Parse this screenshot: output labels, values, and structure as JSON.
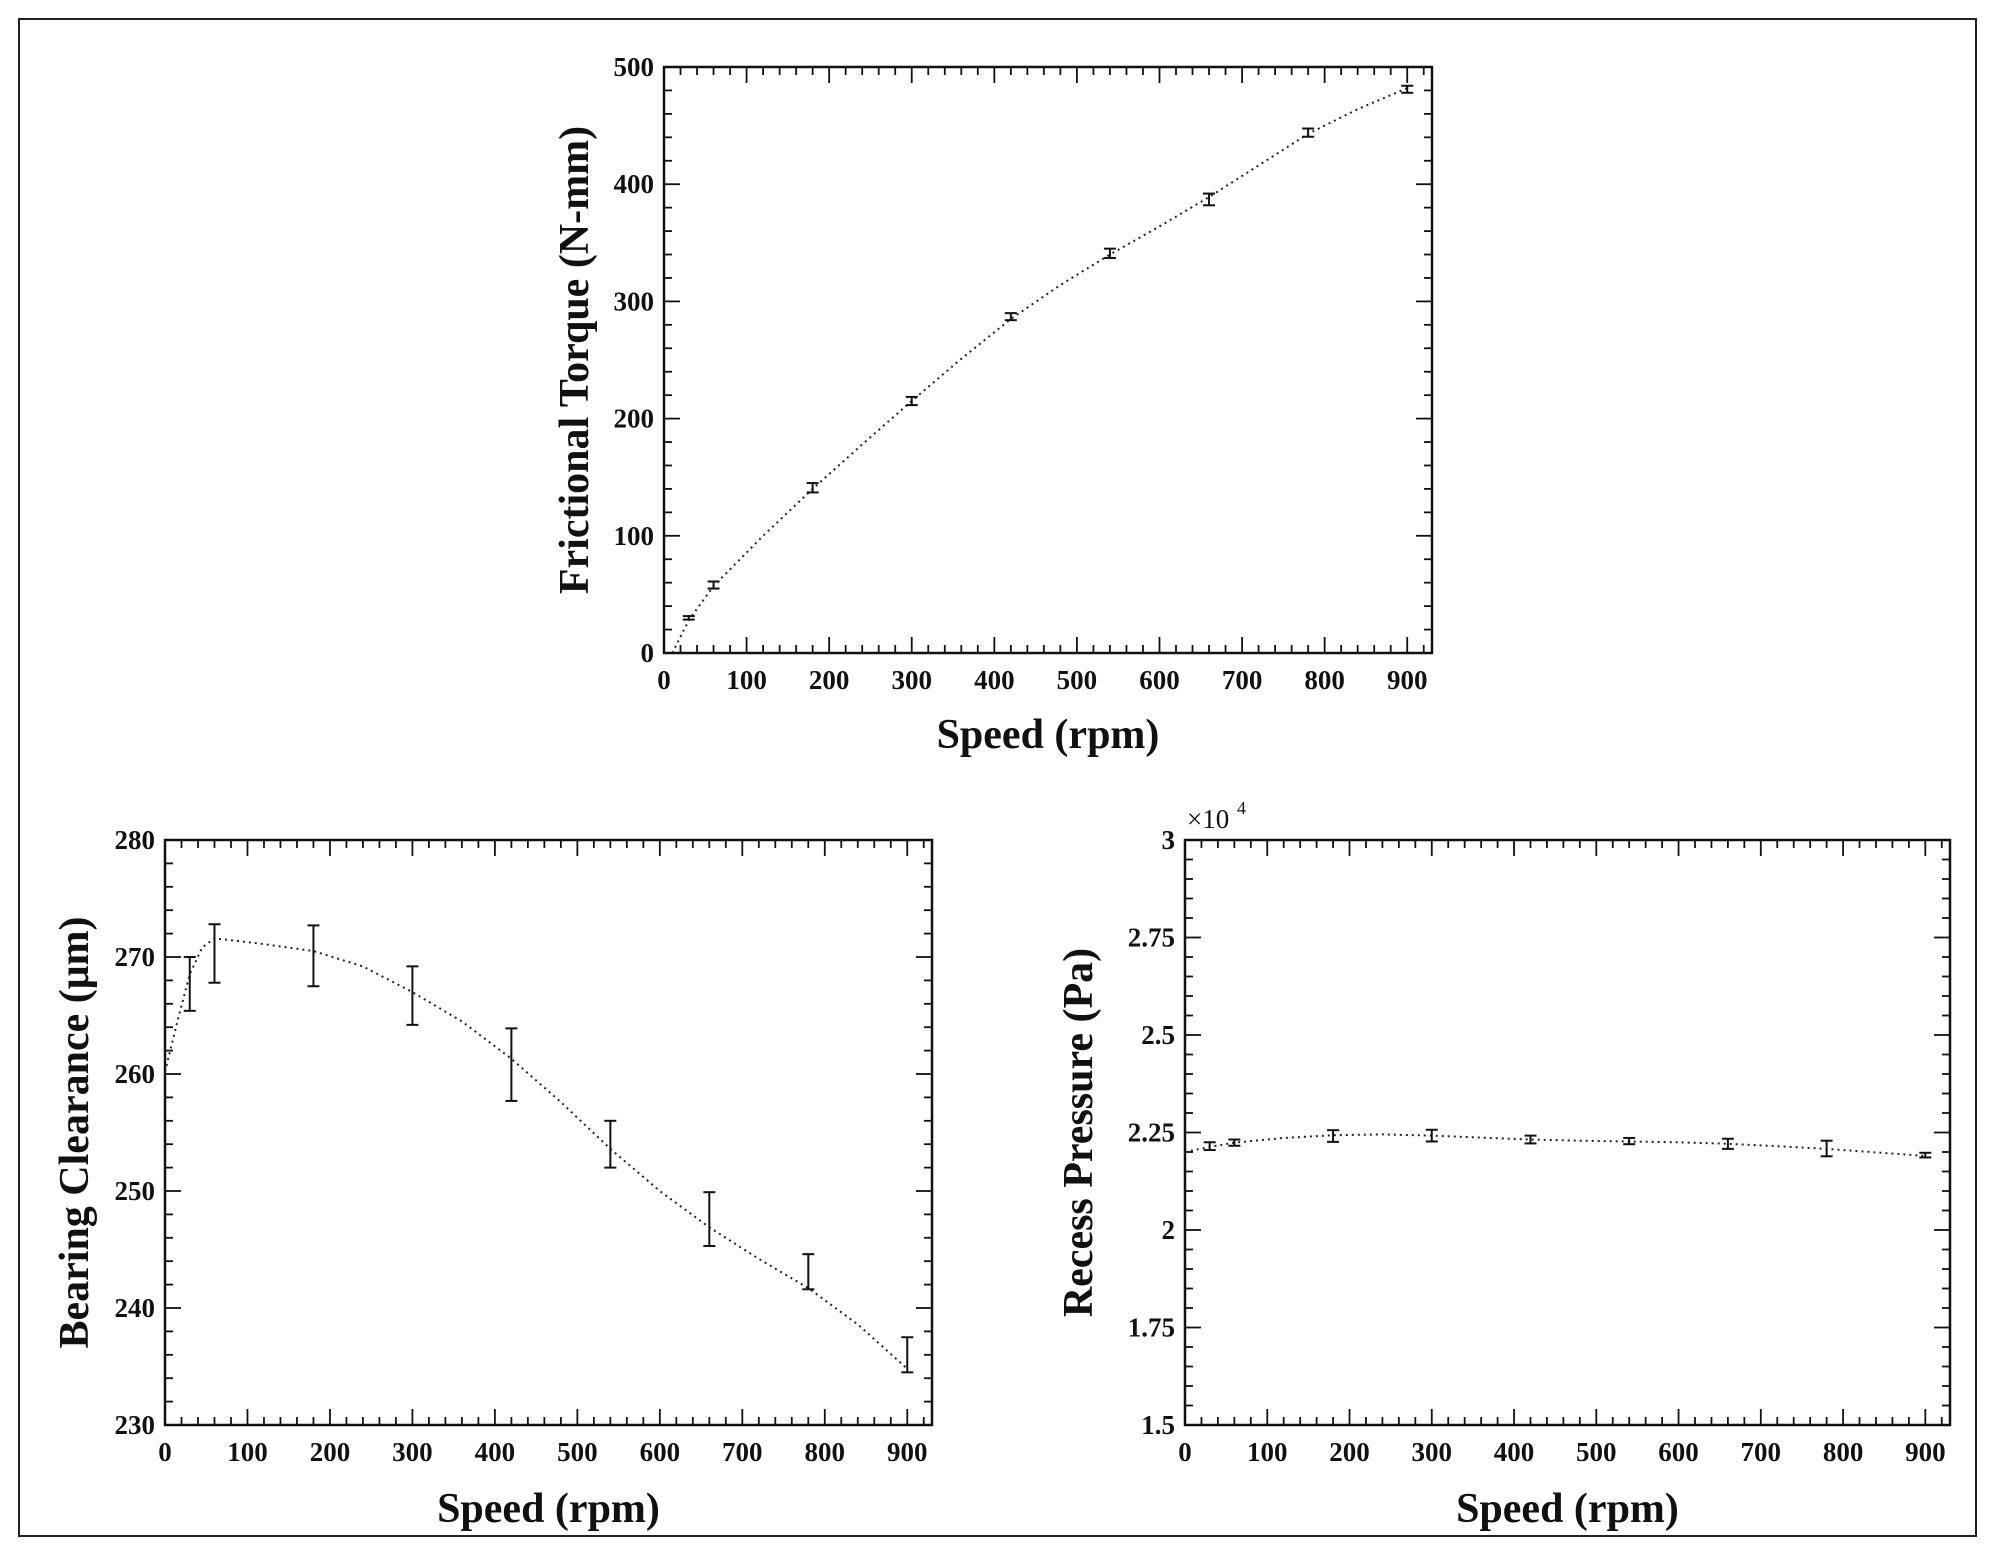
{
  "chart_data": [
    {
      "type": "line",
      "title": "",
      "xlabel": "Speed (rpm)",
      "ylabel": "Frictional Torque (N-mm)",
      "xlim": [
        0,
        930
      ],
      "ylim": [
        0,
        500
      ],
      "xticks": [
        0,
        100,
        200,
        300,
        400,
        500,
        600,
        700,
        800,
        900
      ],
      "yticks": [
        0,
        100,
        200,
        300,
        400,
        500
      ],
      "x_tick_labels": [
        "0",
        "100",
        "200",
        "300",
        "400",
        "500",
        "600",
        "700",
        "800",
        "900"
      ],
      "y_tick_labels": [
        "0",
        "100",
        "200",
        "300",
        "400",
        "500"
      ],
      "grid": false,
      "line_style": "dotted",
      "points": [
        {
          "x": 30,
          "y": 30,
          "err": 1.5
        },
        {
          "x": 60,
          "y": 58,
          "err": 3
        },
        {
          "x": 180,
          "y": 141,
          "err": 4
        },
        {
          "x": 300,
          "y": 215,
          "err": 3.5
        },
        {
          "x": 420,
          "y": 287,
          "err": 3
        },
        {
          "x": 540,
          "y": 341,
          "err": 4
        },
        {
          "x": 660,
          "y": 387,
          "err": 5
        },
        {
          "x": 780,
          "y": 444,
          "err": 3.5
        },
        {
          "x": 900,
          "y": 481,
          "err": 3
        }
      ],
      "curve": [
        {
          "x": 10,
          "y": 0
        },
        {
          "x": 30,
          "y": 28
        },
        {
          "x": 60,
          "y": 57
        },
        {
          "x": 120,
          "y": 100
        },
        {
          "x": 180,
          "y": 140
        },
        {
          "x": 240,
          "y": 178
        },
        {
          "x": 300,
          "y": 215
        },
        {
          "x": 360,
          "y": 251
        },
        {
          "x": 420,
          "y": 285
        },
        {
          "x": 480,
          "y": 314
        },
        {
          "x": 540,
          "y": 340
        },
        {
          "x": 600,
          "y": 364
        },
        {
          "x": 660,
          "y": 389
        },
        {
          "x": 720,
          "y": 416
        },
        {
          "x": 780,
          "y": 443
        },
        {
          "x": 840,
          "y": 464
        },
        {
          "x": 900,
          "y": 482
        }
      ]
    },
    {
      "type": "line",
      "title": "",
      "xlabel": "Speed (rpm)",
      "ylabel": "Bearing Clearance (μm)",
      "xlim": [
        0,
        930
      ],
      "ylim": [
        230,
        280
      ],
      "xticks": [
        0,
        100,
        200,
        300,
        400,
        500,
        600,
        700,
        800,
        900
      ],
      "yticks": [
        230,
        240,
        250,
        260,
        270,
        280
      ],
      "x_tick_labels": [
        "0",
        "100",
        "200",
        "300",
        "400",
        "500",
        "600",
        "700",
        "800",
        "900"
      ],
      "y_tick_labels": [
        "230",
        "240",
        "250",
        "260",
        "270",
        "280"
      ],
      "grid": false,
      "line_style": "dotted",
      "points": [
        {
          "x": 30,
          "y": 267.7,
          "err": 2.3
        },
        {
          "x": 60,
          "y": 270.3,
          "err": 2.5
        },
        {
          "x": 180,
          "y": 270.1,
          "err": 2.6
        },
        {
          "x": 300,
          "y": 266.7,
          "err": 2.5
        },
        {
          "x": 420,
          "y": 260.8,
          "err": 3.1
        },
        {
          "x": 540,
          "y": 254.0,
          "err": 2.0
        },
        {
          "x": 660,
          "y": 247.6,
          "err": 2.3
        },
        {
          "x": 780,
          "y": 243.1,
          "err": 1.5
        },
        {
          "x": 900,
          "y": 236.0,
          "err": 1.5
        }
      ],
      "curve": [
        {
          "x": 0,
          "y": 260.2
        },
        {
          "x": 15,
          "y": 264.5
        },
        {
          "x": 30,
          "y": 268.5
        },
        {
          "x": 45,
          "y": 270.8
        },
        {
          "x": 60,
          "y": 271.6
        },
        {
          "x": 120,
          "y": 271.1
        },
        {
          "x": 180,
          "y": 270.5
        },
        {
          "x": 240,
          "y": 269.2
        },
        {
          "x": 300,
          "y": 267.0
        },
        {
          "x": 360,
          "y": 264.5
        },
        {
          "x": 420,
          "y": 261.3
        },
        {
          "x": 480,
          "y": 257.6
        },
        {
          "x": 540,
          "y": 253.6
        },
        {
          "x": 600,
          "y": 250.0
        },
        {
          "x": 660,
          "y": 246.9
        },
        {
          "x": 720,
          "y": 244.2
        },
        {
          "x": 780,
          "y": 241.7
        },
        {
          "x": 840,
          "y": 238.6
        },
        {
          "x": 900,
          "y": 234.8
        }
      ]
    },
    {
      "type": "line",
      "title": "",
      "xlabel": "Speed (rpm)",
      "ylabel": "Recess Pressure (Pa)",
      "y_multiplier_base": "×10",
      "y_multiplier_exp": "4",
      "xlim": [
        0,
        930
      ],
      "ylim": [
        1.5,
        3
      ],
      "xticks": [
        0,
        100,
        200,
        300,
        400,
        500,
        600,
        700,
        800,
        900
      ],
      "yticks": [
        1.5,
        1.75,
        2,
        2.25,
        2.5,
        2.75,
        3
      ],
      "x_tick_labels": [
        "0",
        "100",
        "200",
        "300",
        "400",
        "500",
        "600",
        "700",
        "800",
        "900"
      ],
      "y_tick_labels": [
        "1.5",
        "1.75",
        "2",
        "2.25",
        "2.5",
        "2.75",
        "3"
      ],
      "grid": false,
      "line_style": "dotted",
      "points": [
        {
          "x": 30,
          "y": 2.215,
          "err": 0.01
        },
        {
          "x": 60,
          "y": 2.224,
          "err": 0.008
        },
        {
          "x": 180,
          "y": 2.241,
          "err": 0.015
        },
        {
          "x": 300,
          "y": 2.242,
          "err": 0.015
        },
        {
          "x": 420,
          "y": 2.232,
          "err": 0.01
        },
        {
          "x": 540,
          "y": 2.228,
          "err": 0.008
        },
        {
          "x": 660,
          "y": 2.221,
          "err": 0.013
        },
        {
          "x": 780,
          "y": 2.209,
          "err": 0.02
        },
        {
          "x": 900,
          "y": 2.192,
          "err": 0.006
        }
      ],
      "curve": [
        {
          "x": 0,
          "y": 2.2
        },
        {
          "x": 30,
          "y": 2.213
        },
        {
          "x": 60,
          "y": 2.224
        },
        {
          "x": 120,
          "y": 2.236
        },
        {
          "x": 180,
          "y": 2.243
        },
        {
          "x": 240,
          "y": 2.245
        },
        {
          "x": 300,
          "y": 2.242
        },
        {
          "x": 360,
          "y": 2.237
        },
        {
          "x": 420,
          "y": 2.232
        },
        {
          "x": 480,
          "y": 2.229
        },
        {
          "x": 540,
          "y": 2.227
        },
        {
          "x": 600,
          "y": 2.225
        },
        {
          "x": 660,
          "y": 2.221
        },
        {
          "x": 720,
          "y": 2.215
        },
        {
          "x": 780,
          "y": 2.208
        },
        {
          "x": 840,
          "y": 2.199
        },
        {
          "x": 900,
          "y": 2.19
        }
      ]
    }
  ]
}
